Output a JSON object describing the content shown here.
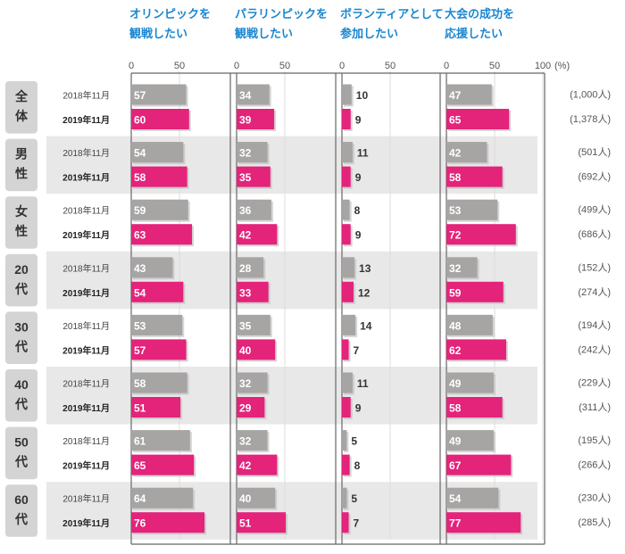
{
  "colors": {
    "series_2018": "#a7a4a4",
    "series_2019": "#e4237a",
    "title": "#1a86d0",
    "band": "#e8e8e8",
    "label_box": "#d4d4d4"
  },
  "chart_data": {
    "type": "bar",
    "orientation": "horizontal",
    "unit": "(%)",
    "xlim": [
      0,
      100
    ],
    "panel_ticks": [
      [
        "0",
        "50"
      ],
      [
        "0",
        "50"
      ],
      [
        "0",
        "50"
      ],
      [
        "0",
        "50",
        "100"
      ]
    ],
    "panels": [
      {
        "title_lines": [
          "オリンピックを",
          "観戦したい"
        ]
      },
      {
        "title_lines": [
          "パラリンピックを",
          "観戦したい"
        ]
      },
      {
        "title_lines": [
          "ボランティアとして",
          "参加したい"
        ]
      },
      {
        "title_lines": [
          "大会の成功を",
          "応援したい"
        ]
      }
    ],
    "series": [
      {
        "name": "2018年11月"
      },
      {
        "name": "2019年11月"
      }
    ],
    "groups": [
      {
        "label": [
          "全",
          "体"
        ],
        "rows": [
          {
            "year": "2018年11月",
            "values": [
              57,
              34,
              10,
              47
            ],
            "n": "(1,000人)"
          },
          {
            "year": "2019年11月",
            "values": [
              60,
              39,
              9,
              65
            ],
            "n": "(1,378人)"
          }
        ]
      },
      {
        "label": [
          "男",
          "性"
        ],
        "rows": [
          {
            "year": "2018年11月",
            "values": [
              54,
              32,
              11,
              42
            ],
            "n": "(501人)"
          },
          {
            "year": "2019年11月",
            "values": [
              58,
              35,
              9,
              58
            ],
            "n": "(692人)"
          }
        ]
      },
      {
        "label": [
          "女",
          "性"
        ],
        "rows": [
          {
            "year": "2018年11月",
            "values": [
              59,
              36,
              8,
              53
            ],
            "n": "(499人)"
          },
          {
            "year": "2019年11月",
            "values": [
              63,
              42,
              9,
              72
            ],
            "n": "(686人)"
          }
        ]
      },
      {
        "label": [
          "20",
          "代"
        ],
        "rows": [
          {
            "year": "2018年11月",
            "values": [
              43,
              28,
              13,
              32
            ],
            "n": "(152人)"
          },
          {
            "year": "2019年11月",
            "values": [
              54,
              33,
              12,
              59
            ],
            "n": "(274人)"
          }
        ]
      },
      {
        "label": [
          "30",
          "代"
        ],
        "rows": [
          {
            "year": "2018年11月",
            "values": [
              53,
              35,
              14,
              48
            ],
            "n": "(194人)"
          },
          {
            "year": "2019年11月",
            "values": [
              57,
              40,
              7,
              62
            ],
            "n": "(242人)"
          }
        ]
      },
      {
        "label": [
          "40",
          "代"
        ],
        "rows": [
          {
            "year": "2018年11月",
            "values": [
              58,
              32,
              11,
              49
            ],
            "n": "(229人)"
          },
          {
            "year": "2019年11月",
            "values": [
              51,
              29,
              9,
              58
            ],
            "n": "(311人)"
          }
        ]
      },
      {
        "label": [
          "50",
          "代"
        ],
        "rows": [
          {
            "year": "2018年11月",
            "values": [
              61,
              32,
              5,
              49
            ],
            "n": "(195人)"
          },
          {
            "year": "2019年11月",
            "values": [
              65,
              42,
              8,
              67
            ],
            "n": "(266人)"
          }
        ]
      },
      {
        "label": [
          "60",
          "代"
        ],
        "rows": [
          {
            "year": "2018年11月",
            "values": [
              64,
              40,
              5,
              54
            ],
            "n": "(230人)"
          },
          {
            "year": "2019年11月",
            "values": [
              76,
              51,
              7,
              77
            ],
            "n": "(285人)"
          }
        ]
      }
    ]
  }
}
